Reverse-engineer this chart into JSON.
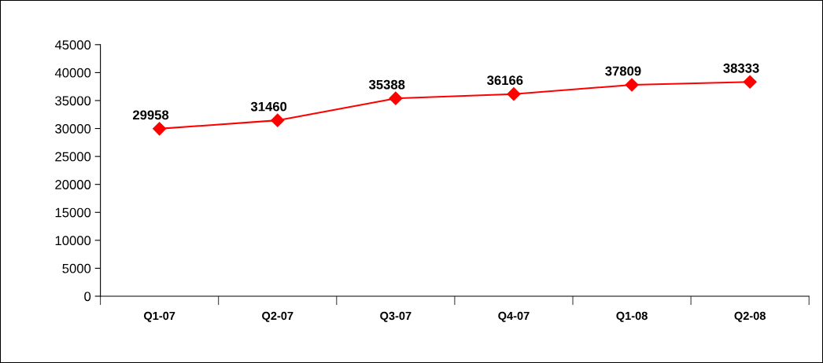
{
  "chart_data": {
    "type": "line",
    "categories": [
      "Q1-07",
      "Q2-07",
      "Q3-07",
      "Q4-07",
      "Q1-08",
      "Q2-08"
    ],
    "series": [
      {
        "color": "#ff0000",
        "values": [
          29958,
          31460,
          35388,
          36166,
          37809,
          38333
        ]
      }
    ],
    "ylim": [
      0,
      45000
    ],
    "yticks": [
      0,
      5000,
      10000,
      15000,
      20000,
      25000,
      30000,
      35000,
      40000,
      45000
    ],
    "marker": "diamond",
    "line_style": "solid",
    "data_labels": true,
    "grid": false,
    "legend": false
  }
}
